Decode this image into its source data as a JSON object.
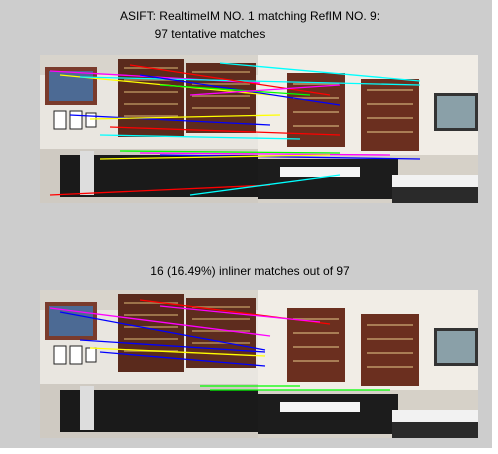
{
  "figure": {
    "top_title": {
      "line1": "ASIFT: RealtimeIM NO. 1 matching RefIM NO. 9:",
      "line2": "97 tentative matches"
    },
    "bottom_title": "16 (16.49%) inliner matches out of 97"
  }
}
